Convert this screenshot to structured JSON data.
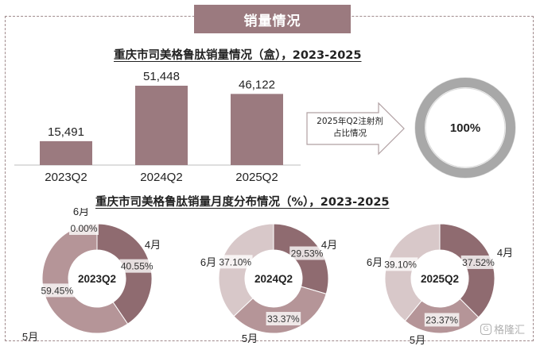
{
  "header": {
    "title": "销量情况"
  },
  "chart_data": [
    {
      "type": "bar",
      "title": "重庆市司美格鲁肽销量情况（盒），2023-2025",
      "categories": [
        "2023Q2",
        "2024Q2",
        "2025Q2"
      ],
      "values": [
        15491,
        51448,
        46122
      ],
      "value_labels": [
        "15,491",
        "51,448",
        "46,122"
      ],
      "color": "#9b7a7f",
      "ylim": [
        0,
        55000
      ]
    },
    {
      "type": "pie",
      "variant": "donut",
      "annotation": "2025年Q2注射剂占比情况",
      "values": [
        100
      ],
      "value_labels": [
        "100%"
      ],
      "colors": [
        "#a8a8a8"
      ]
    },
    {
      "type": "pie",
      "variant": "donut",
      "title": "重庆市司美格鲁肽销量月度分布情况（%），2023-2025",
      "charts": [
        {
          "center_label": "2023Q2",
          "slices": [
            {
              "month": "4月",
              "value": 40.55,
              "label": "40.55%",
              "color": "#8f6b70"
            },
            {
              "month": "5月",
              "value": 59.45,
              "label": "59.45%",
              "color": "#b59598"
            },
            {
              "month": "6月",
              "value": 0.0,
              "label": "0.00%",
              "color": "#d8c8c9"
            }
          ]
        },
        {
          "center_label": "2024Q2",
          "slices": [
            {
              "month": "4月",
              "value": 29.53,
              "label": "29.53%",
              "color": "#8f6b70"
            },
            {
              "month": "5月",
              "value": 33.37,
              "label": "33.37%",
              "color": "#b59598"
            },
            {
              "month": "6月",
              "value": 37.1,
              "label": "37.10%",
              "color": "#d8c8c9"
            }
          ]
        },
        {
          "center_label": "2025Q2",
          "slices": [
            {
              "month": "4月",
              "value": 37.52,
              "label": "37.52%",
              "color": "#8f6b70"
            },
            {
              "month": "5月",
              "value": 23.37,
              "label": "23.37%",
              "color": "#b59598"
            },
            {
              "month": "6月",
              "value": 39.1,
              "label": "39.10%",
              "color": "#d8c8c9"
            }
          ]
        }
      ]
    }
  ],
  "watermark": {
    "text": "格隆汇",
    "icon": "gelonghui-logo-icon"
  }
}
